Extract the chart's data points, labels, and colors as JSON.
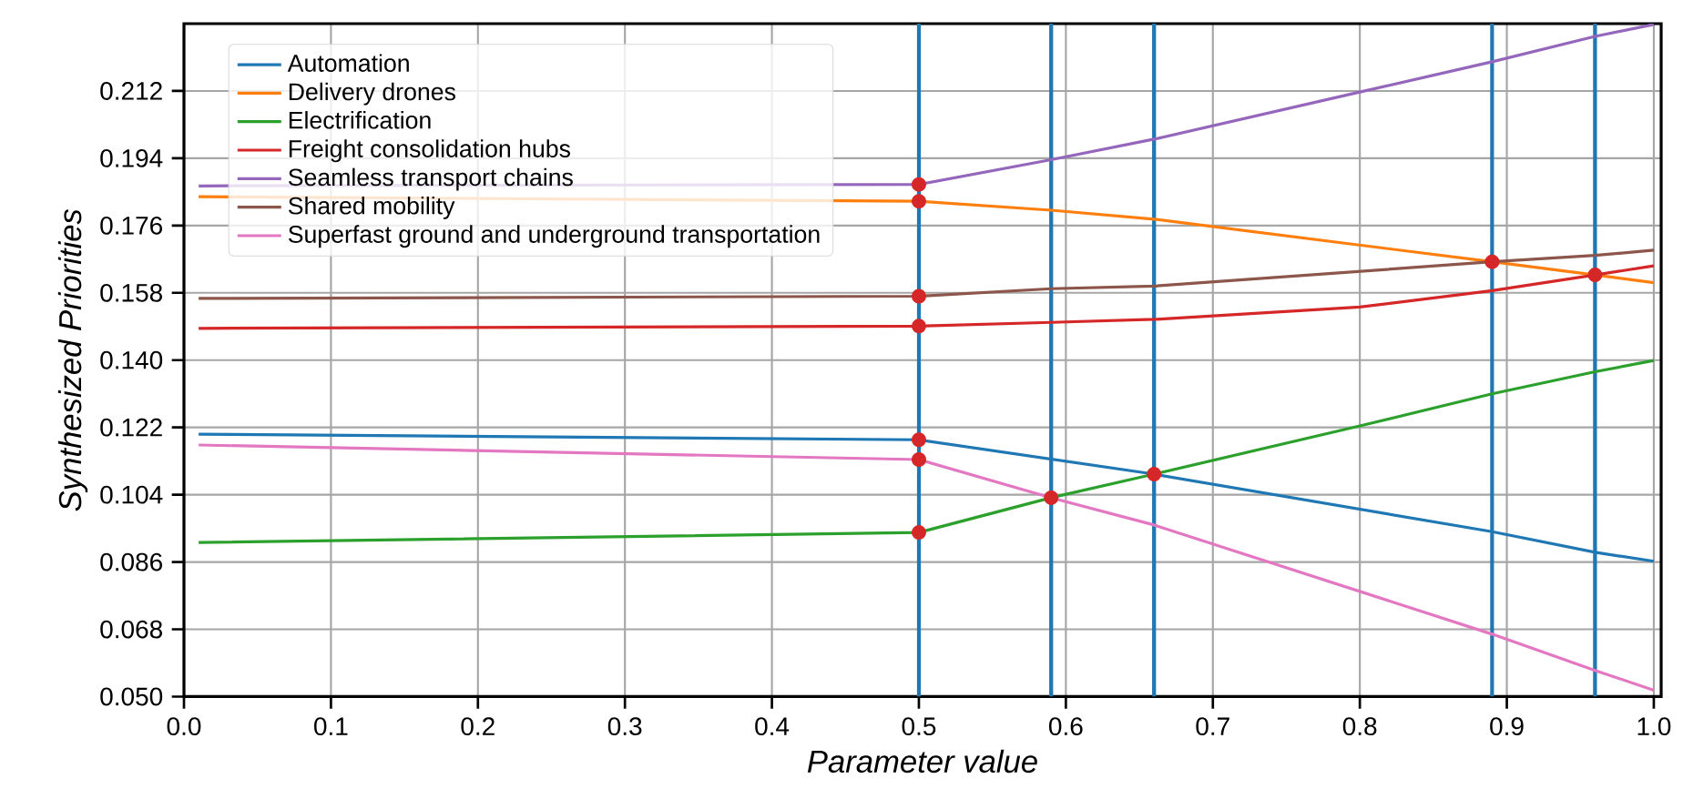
{
  "chart_data": {
    "type": "line",
    "xlabel": "Parameter value",
    "ylabel": "Synthesized Priorities",
    "xlim": [
      0,
      1.005
    ],
    "ylim": [
      0.05,
      0.23
    ],
    "xticks": [
      {
        "value": 0,
        "label": "0.0"
      },
      0.1,
      0.2,
      0.3,
      0.4,
      0.5,
      0.6,
      0.7,
      0.8,
      0.9,
      {
        "value": 1,
        "label": "1.0"
      }
    ],
    "yticks": [
      {
        "value": 0.05,
        "label": "0.050"
      },
      0.068,
      0.086,
      0.104,
      0.122,
      {
        "value": 0.14,
        "label": "0.140"
      },
      0.158,
      0.176,
      0.194,
      0.212
    ],
    "grid": true,
    "legend": "top left",
    "ref_lines": [
      {
        "axis": "x",
        "value": 0.5,
        "color": "#1f77b4"
      },
      {
        "axis": "x",
        "value": 0.59,
        "color": "#1f77b4"
      },
      {
        "axis": "x",
        "value": 0.66,
        "color": "#1f77b4"
      },
      {
        "axis": "x",
        "value": 0.89,
        "color": "#1f77b4"
      },
      {
        "axis": "x",
        "value": 0.96,
        "color": "#1f77b4"
      }
    ],
    "series": [
      {
        "name": "Automation",
        "color": "#1f77b4",
        "x": [
          0.01,
          0.5,
          0.66,
          0.89,
          0.96,
          1.0
        ],
        "values": [
          0.1202,
          0.1187,
          0.1095,
          0.0941,
          0.0886,
          0.0862
        ]
      },
      {
        "name": "Delivery drones",
        "color": "#ff7f0e",
        "x": [
          0.01,
          0.5,
          0.59,
          0.66,
          0.89,
          0.96,
          1.0
        ],
        "values": [
          0.1837,
          0.1825,
          0.1801,
          0.1777,
          0.1663,
          0.1628,
          0.1607
        ]
      },
      {
        "name": "Electrification",
        "color": "#2ca02c",
        "x": [
          0.01,
          0.5,
          0.59,
          0.66,
          0.8,
          0.89,
          0.96,
          1.0
        ],
        "values": [
          0.0912,
          0.0939,
          0.1032,
          0.1095,
          0.1224,
          0.131,
          0.1369,
          0.1399
        ]
      },
      {
        "name": "Freight consolidation hubs",
        "color": "#d62728",
        "x": [
          0.01,
          0.5,
          0.59,
          0.66,
          0.8,
          0.89,
          0.96,
          1.0
        ],
        "values": [
          0.1485,
          0.1491,
          0.1501,
          0.1509,
          0.1542,
          0.1586,
          0.1628,
          0.1652
        ]
      },
      {
        "name": "Seamless transport chains",
        "color": "#9467bd",
        "x": [
          0.01,
          0.5,
          0.59,
          0.66,
          0.8,
          0.89,
          0.96,
          1.0
        ],
        "values": [
          0.1866,
          0.187,
          0.1936,
          0.1991,
          0.2117,
          0.2198,
          0.2266,
          0.2298
        ]
      },
      {
        "name": "Shared mobility",
        "color": "#8c564b",
        "x": [
          0.01,
          0.5,
          0.59,
          0.66,
          0.89,
          0.96,
          1.0
        ],
        "values": [
          0.1565,
          0.1571,
          0.1591,
          0.1598,
          0.1663,
          0.168,
          0.1694
        ]
      },
      {
        "name": "Superfast  ground and underground transportation",
        "color": "#e377c2",
        "x": [
          0.01,
          0.5,
          0.59,
          0.66,
          0.89,
          0.96,
          1.0
        ],
        "values": [
          0.1173,
          0.1134,
          0.1032,
          0.0959,
          0.0667,
          0.057,
          0.0517
        ]
      },
      {
        "type": "scatter",
        "color": "#d62728",
        "x": [
          0.5,
          0.5,
          0.5,
          0.5,
          0.5,
          0.5,
          0.5,
          0.59,
          0.66,
          0.89,
          0.96
        ],
        "values": [
          0.187,
          0.1825,
          0.1571,
          0.1491,
          0.1187,
          0.1134,
          0.0939,
          0.1032,
          0.1095,
          0.1663,
          0.1628
        ]
      }
    ]
  }
}
